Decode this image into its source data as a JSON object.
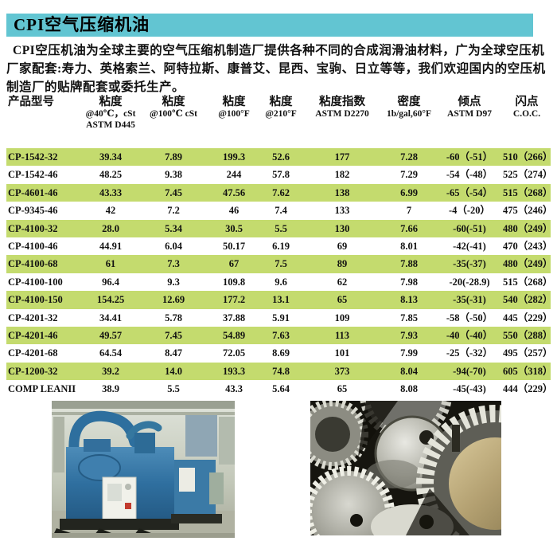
{
  "page": {
    "title": "CPI空气压缩机油",
    "intro": "CPI空压机油为全球主要的空气压缩机制造厂提供各种不同的合成润滑油材料，广为全球空压机厂家配套:寿力、英格索兰、阿特拉斯、康普艾、昆西、宝驹、日立等等，我们欢迎国内的空压机制造厂的贴牌配套或委托生产。"
  },
  "colors": {
    "title_bar": "#62c5d2",
    "row_highlight": "#c4db6e"
  },
  "table": {
    "columns": [
      {
        "label": "产品型号",
        "sub1": "",
        "sub2": ""
      },
      {
        "label": "粘度",
        "sub1": "@40℃，cSt",
        "sub2": "ASTM D445"
      },
      {
        "label": "粘度",
        "sub1": "@100℃ cSt",
        "sub2": ""
      },
      {
        "label": "粘度",
        "sub1": "@100°F",
        "sub2": ""
      },
      {
        "label": "粘度",
        "sub1": "@210°F",
        "sub2": ""
      },
      {
        "label": "粘度指数",
        "sub1": "ASTM D2270",
        "sub2": ""
      },
      {
        "label": "密度",
        "sub1": "1b/gal,60°F",
        "sub2": ""
      },
      {
        "label": "倾点",
        "sub1": "ASTM D97",
        "sub2": ""
      },
      {
        "label": "闪点",
        "sub1": "C.O.C.",
        "sub2": ""
      }
    ],
    "rows": [
      [
        "CP-1542-32",
        "39.34",
        "7.89",
        "199.3",
        "52.6",
        "177",
        "7.28",
        "-60（-51）",
        "510（266）"
      ],
      [
        "CP-1542-46",
        "48.25",
        "9.38",
        "244",
        "57.8",
        "182",
        "7.29",
        "-54（-48）",
        "525（274）"
      ],
      [
        "CP-4601-46",
        "43.33",
        "7.45",
        "47.56",
        "7.62",
        "138",
        "6.99",
        "-65（-54）",
        "515（268）"
      ],
      [
        "CP-9345-46",
        "42",
        "7.2",
        "46",
        "7.4",
        "133",
        "7",
        "-4（-20）",
        "475（246）"
      ],
      [
        "CP-4100-32",
        "28.0",
        "5.34",
        "30.5",
        "5.5",
        "130",
        "7.66",
        "-60(-51)",
        "480（249）"
      ],
      [
        "CP-4100-46",
        "44.91",
        "6.04",
        "50.17",
        "6.19",
        "69",
        "8.01",
        "-42(-41)",
        "470（243）"
      ],
      [
        "CP-4100-68",
        "61",
        "7.3",
        "67",
        "7.5",
        "89",
        "7.88",
        "-35(-37)",
        "480（249）"
      ],
      [
        "CP-4100-100",
        "96.4",
        "9.3",
        "109.8",
        "9.6",
        "62",
        "7.98",
        "-20(-28.9)",
        "515（268）"
      ],
      [
        "CP-4100-150",
        "154.25",
        "12.69",
        "177.2",
        "13.1",
        "65",
        "8.13",
        "-35(-31)",
        "540（282）"
      ],
      [
        "CP-4201-32",
        "34.41",
        "5.78",
        "37.88",
        "5.91",
        "109",
        "7.85",
        "-58（-50）",
        "445（229）"
      ],
      [
        "CP-4201-46",
        "49.57",
        "7.45",
        "54.89",
        "7.63",
        "113",
        "7.93",
        "-40（-40）",
        "550（288）"
      ],
      [
        "CP-4201-68",
        "64.54",
        "8.47",
        "72.05",
        "8.69",
        "101",
        "7.99",
        "-25（-32）",
        "495（257）"
      ],
      [
        "CP-1200-32",
        "39.2",
        "14.0",
        "193.3",
        "74.8",
        "373",
        "8.04",
        "-94(-70)",
        "605（318）"
      ],
      [
        "COMP LEANII",
        "38.9",
        "5.5",
        "43.3",
        "5.64",
        "65",
        "8.08",
        "-45(-43)",
        "444（229）"
      ]
    ]
  },
  "images": {
    "left": "blue-air-compressor-factory-photo",
    "right": "metal-gears-closeup-photo"
  }
}
